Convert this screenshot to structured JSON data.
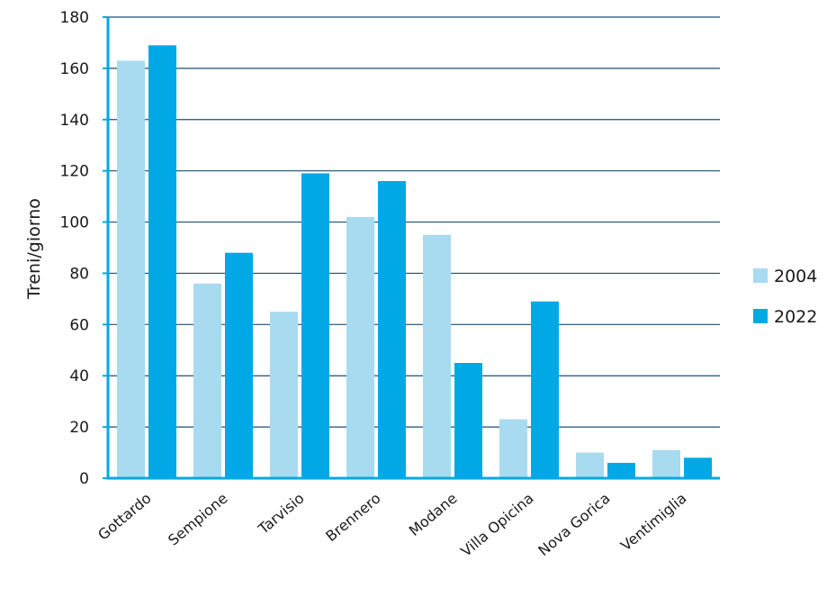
{
  "chart_data": {
    "type": "bar",
    "title": "",
    "xlabel": "",
    "ylabel": "Treni/giorno",
    "ylim": [
      0,
      180
    ],
    "yticks": [
      0,
      20,
      40,
      60,
      80,
      100,
      120,
      140,
      160,
      180
    ],
    "grid": true,
    "legend_position": "right",
    "categories": [
      "Gottardo",
      "Sempione",
      "Tarvisio",
      "Brennero",
      "Modane",
      "Villa Opicina",
      "Nova Gorica",
      "Ventimiglia"
    ],
    "series": [
      {
        "name": "2004",
        "color": "#a8dbf0",
        "values": [
          163,
          76,
          65,
          102,
          95,
          23,
          10,
          11
        ]
      },
      {
        "name": "2022",
        "color": "#00a9e6",
        "values": [
          169,
          88,
          119,
          116,
          45,
          69,
          6,
          8
        ]
      }
    ],
    "axis_color": "#00a9e6",
    "grid_color": "#1f4f73"
  }
}
